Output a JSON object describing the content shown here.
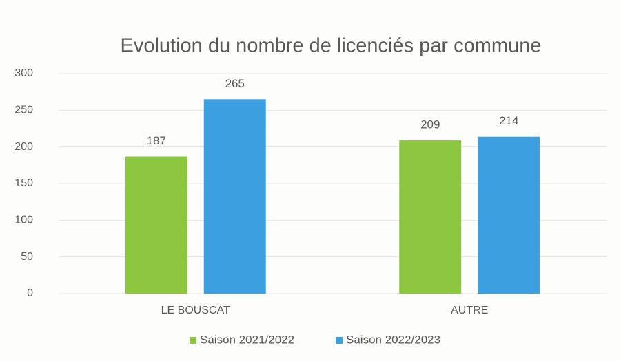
{
  "chart_data": {
    "type": "bar",
    "title": "Evolution du nombre de licenciés par commune",
    "categories": [
      "LE BOUSCAT",
      "AUTRE"
    ],
    "series": [
      {
        "name": "Saison 2021/2022",
        "color": "#8dc63f",
        "values": [
          187,
          209
        ]
      },
      {
        "name": "Saison 2022/2023",
        "color": "#3b9fe0",
        "values": [
          265,
          214
        ]
      }
    ],
    "ylim": [
      0,
      300
    ],
    "yticks": [
      0,
      50,
      100,
      150,
      200,
      250,
      300
    ],
    "grid": true,
    "legend": "bottom"
  }
}
